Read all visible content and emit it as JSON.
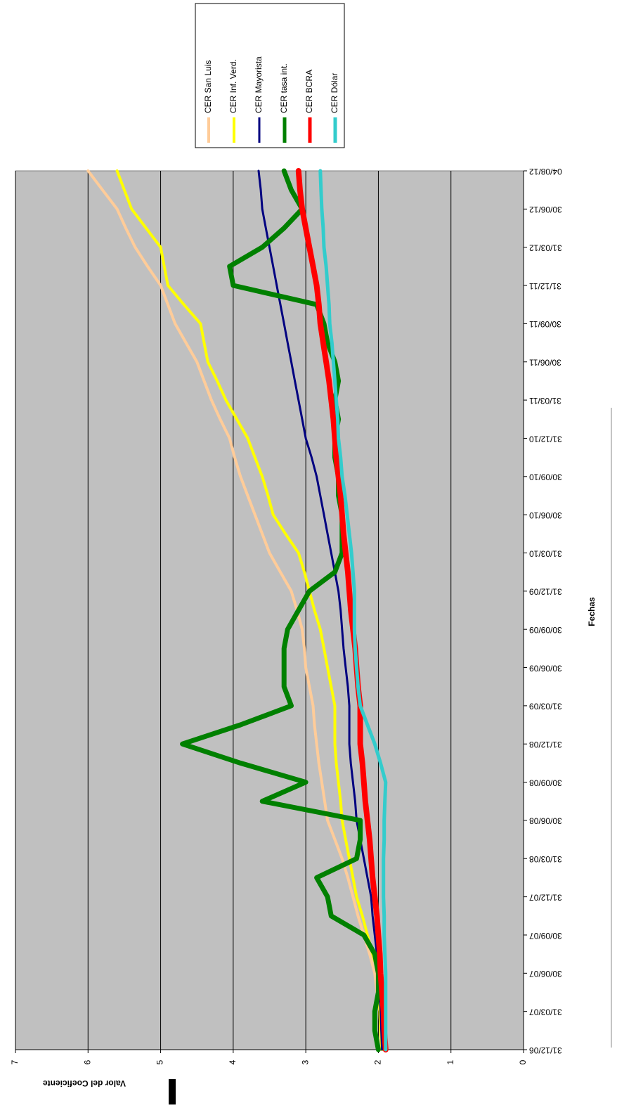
{
  "chart_data": {
    "type": "line",
    "x_label": "Fechas",
    "y_label": "Valor del Coeficiente",
    "categories": [
      "31/12/06",
      null,
      "31/03/07",
      null,
      "30/06/07",
      null,
      "30/09/07",
      null,
      "31/12/07",
      null,
      "31/03/08",
      null,
      "30/06/08",
      null,
      "30/09/08",
      null,
      "31/12/08",
      null,
      "31/03/09",
      null,
      "30/06/09",
      null,
      "30/09/09",
      null,
      "31/12/09",
      null,
      "31/03/10",
      null,
      "30/06/10",
      null,
      "30/09/10",
      null,
      "31/12/10",
      null,
      "31/03/11",
      null,
      "30/06/11",
      null,
      "30/09/11",
      null,
      "31/12/11",
      null,
      "31/03/12",
      null,
      "30/06/12",
      null,
      "04/08/12"
    ],
    "series": [
      {
        "name": "CER San Luis",
        "color": "#ffcc99",
        "width": 4,
        "values": [
          1.95,
          1.97,
          1.98,
          2.02,
          2.05,
          2.12,
          2.2,
          2.28,
          2.35,
          2.42,
          2.5,
          2.6,
          2.7,
          2.74,
          2.78,
          2.82,
          2.85,
          2.88,
          2.9,
          2.95,
          3.0,
          3.02,
          3.05,
          3.12,
          3.2,
          3.35,
          3.5,
          3.6,
          3.7,
          3.8,
          3.9,
          3.98,
          4.05,
          4.18,
          4.3,
          4.4,
          4.5,
          4.65,
          4.8,
          4.9,
          5.0,
          5.18,
          5.35,
          5.48,
          5.6,
          5.8,
          6.0
        ]
      },
      {
        "name": "CER Inf. Verd.",
        "color": "#ffff00",
        "width": 4,
        "values": [
          1.95,
          1.97,
          1.98,
          1.99,
          2.0,
          2.08,
          2.15,
          2.22,
          2.3,
          2.35,
          2.4,
          2.45,
          2.5,
          2.52,
          2.55,
          2.58,
          2.6,
          2.6,
          2.6,
          2.65,
          2.7,
          2.75,
          2.8,
          2.88,
          2.95,
          3.02,
          3.1,
          3.28,
          3.45,
          3.52,
          3.6,
          3.7,
          3.8,
          3.95,
          4.1,
          4.22,
          4.35,
          4.4,
          4.45,
          4.68,
          4.9,
          4.95,
          5.0,
          5.2,
          5.4,
          5.5,
          5.6
        ]
      },
      {
        "name": "CER Mayorista",
        "color": "#000080",
        "width": 3,
        "values": [
          1.95,
          1.96,
          1.97,
          1.98,
          2.0,
          2.02,
          2.05,
          2.08,
          2.1,
          2.15,
          2.2,
          2.25,
          2.3,
          2.32,
          2.35,
          2.38,
          2.4,
          2.4,
          2.4,
          2.42,
          2.45,
          2.48,
          2.5,
          2.52,
          2.55,
          2.6,
          2.65,
          2.7,
          2.75,
          2.8,
          2.85,
          2.92,
          3.0,
          3.05,
          3.1,
          3.15,
          3.2,
          3.25,
          3.3,
          3.35,
          3.4,
          3.45,
          3.5,
          3.55,
          3.6,
          3.62,
          3.65
        ]
      },
      {
        "name": "CER tasa int.",
        "color": "#008000",
        "width": 7,
        "values": [
          2.0,
          2.05,
          2.05,
          2.0,
          2.0,
          2.05,
          2.2,
          2.65,
          2.7,
          2.85,
          2.3,
          2.25,
          2.25,
          3.6,
          3.0,
          3.9,
          4.7,
          3.9,
          3.2,
          3.3,
          3.3,
          3.3,
          3.25,
          3.1,
          2.95,
          2.6,
          2.5,
          2.5,
          2.5,
          2.55,
          2.55,
          2.6,
          2.6,
          2.55,
          2.6,
          2.55,
          2.6,
          2.7,
          2.75,
          2.85,
          4.0,
          4.05,
          3.6,
          3.3,
          3.05,
          3.2,
          3.3
        ]
      },
      {
        "name": "CER BCRA",
        "color": "#ff0000",
        "width": 8,
        "values": [
          1.9,
          1.92,
          1.93,
          1.95,
          1.97,
          1.98,
          2.0,
          2.02,
          2.05,
          2.08,
          2.1,
          2.12,
          2.15,
          2.18,
          2.2,
          2.22,
          2.25,
          2.25,
          2.25,
          2.28,
          2.3,
          2.32,
          2.35,
          2.38,
          2.4,
          2.42,
          2.45,
          2.48,
          2.5,
          2.52,
          2.55,
          2.58,
          2.6,
          2.62,
          2.65,
          2.68,
          2.72,
          2.76,
          2.8,
          2.82,
          2.85,
          2.9,
          2.95,
          3.0,
          3.05,
          3.08,
          3.1
        ]
      },
      {
        "name": "CER Dólar",
        "color": "#33cccc",
        "width": 5,
        "values": [
          1.9,
          1.9,
          1.9,
          1.9,
          1.9,
          1.91,
          1.92,
          1.92,
          1.93,
          1.93,
          1.93,
          1.92,
          1.92,
          1.91,
          1.9,
          1.97,
          2.05,
          2.15,
          2.25,
          2.28,
          2.3,
          2.32,
          2.33,
          2.33,
          2.33,
          2.35,
          2.37,
          2.4,
          2.43,
          2.46,
          2.5,
          2.52,
          2.55,
          2.56,
          2.58,
          2.6,
          2.62,
          2.64,
          2.67,
          2.68,
          2.7,
          2.72,
          2.75,
          2.76,
          2.78,
          2.79,
          2.8
        ]
      }
    ],
    "ylim": [
      0,
      7
    ],
    "yticks": [
      0,
      1,
      2,
      3,
      4,
      5,
      6,
      7
    ],
    "grid": true
  }
}
